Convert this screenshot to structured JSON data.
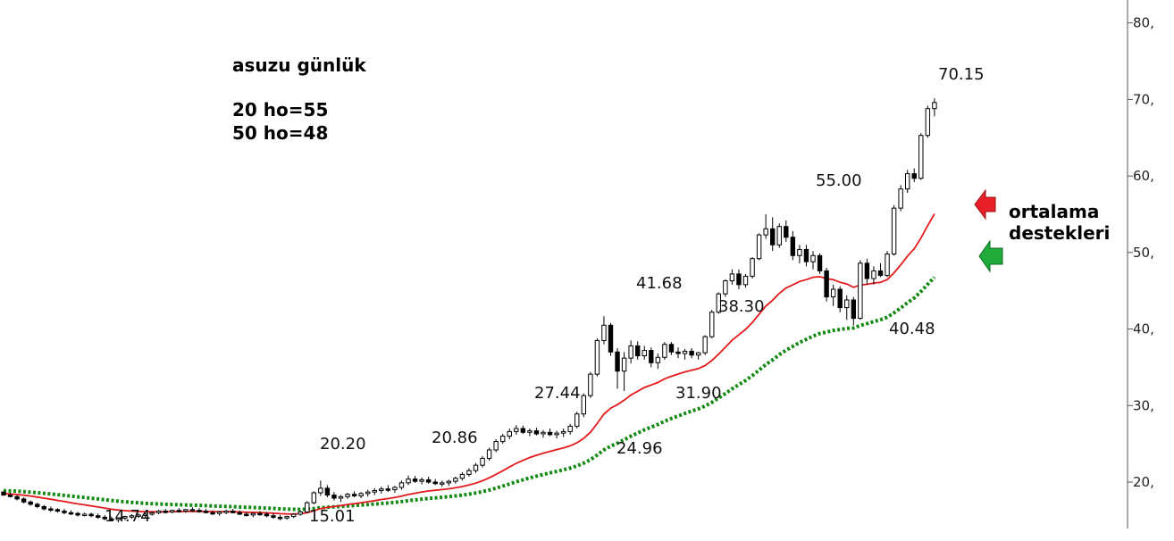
{
  "chart_data": {
    "type": "candlestick",
    "title": "",
    "info_lines": [
      "asuzu günlük",
      "20 ho=55",
      "50 ho=48"
    ],
    "y_axis": {
      "side": "right",
      "ylim": [
        12.3,
        83
      ],
      "ticks": [
        20,
        30,
        40,
        50,
        60,
        70,
        80
      ],
      "tick_labels": [
        "20,",
        "30,",
        "40,",
        "50,",
        "60,",
        "70,",
        "80,"
      ]
    },
    "grid": false,
    "series": [
      {
        "name": "20 ho",
        "style": "solid",
        "color": "#e31a1c",
        "last_value": 55
      },
      {
        "name": "50 ho",
        "style": "dotted",
        "color": "#138a13",
        "last_value": 48
      }
    ],
    "candles_ohlc": [
      [
        18.7,
        18.8,
        18.2,
        18.3
      ],
      [
        18.3,
        18.6,
        18.0,
        18.1
      ],
      [
        18.1,
        18.3,
        17.6,
        17.8
      ],
      [
        17.8,
        18.0,
        17.2,
        17.4
      ],
      [
        17.4,
        17.6,
        16.9,
        17.1
      ],
      [
        17.1,
        17.3,
        16.6,
        16.8
      ],
      [
        16.8,
        17.0,
        16.3,
        16.5
      ],
      [
        16.5,
        16.8,
        16.1,
        16.4
      ],
      [
        16.4,
        16.6,
        16.0,
        16.2
      ],
      [
        16.2,
        16.5,
        15.8,
        16.0
      ],
      [
        16.0,
        16.3,
        15.7,
        15.9
      ],
      [
        15.9,
        16.1,
        15.5,
        15.7
      ],
      [
        15.7,
        16.0,
        15.5,
        15.8
      ],
      [
        15.8,
        16.0,
        15.4,
        15.6
      ],
      [
        15.6,
        15.9,
        15.2,
        15.4
      ],
      [
        15.4,
        15.7,
        15.0,
        15.2
      ],
      [
        15.2,
        15.5,
        14.9,
        15.1
      ],
      [
        15.1,
        15.4,
        14.74,
        15.3
      ],
      [
        15.3,
        15.6,
        15.0,
        15.5
      ],
      [
        15.5,
        15.8,
        15.2,
        15.6
      ],
      [
        15.6,
        15.9,
        15.3,
        15.7
      ],
      [
        15.7,
        16.0,
        15.4,
        15.8
      ],
      [
        15.8,
        16.2,
        15.6,
        16.0
      ],
      [
        16.0,
        16.4,
        15.8,
        16.2
      ],
      [
        16.2,
        16.5,
        15.9,
        16.1
      ],
      [
        16.1,
        16.4,
        15.9,
        16.3
      ],
      [
        16.3,
        16.6,
        16.0,
        16.2
      ],
      [
        16.2,
        16.5,
        16.0,
        16.4
      ],
      [
        16.4,
        16.7,
        16.1,
        16.3
      ],
      [
        16.3,
        16.6,
        16.0,
        16.2
      ],
      [
        16.2,
        16.5,
        15.9,
        16.0
      ],
      [
        16.0,
        16.3,
        15.7,
        15.9
      ],
      [
        15.9,
        16.2,
        15.6,
        16.1
      ],
      [
        16.1,
        16.4,
        15.8,
        16.2
      ],
      [
        16.2,
        16.5,
        15.9,
        16.0
      ],
      [
        16.0,
        16.3,
        15.7,
        15.8
      ],
      [
        15.8,
        16.1,
        15.5,
        15.7
      ],
      [
        15.7,
        16.0,
        15.4,
        15.9
      ],
      [
        15.9,
        16.2,
        15.6,
        15.8
      ],
      [
        15.8,
        16.1,
        15.4,
        15.6
      ],
      [
        15.6,
        15.9,
        15.2,
        15.4
      ],
      [
        15.4,
        15.7,
        15.01,
        15.3
      ],
      [
        15.3,
        15.6,
        15.1,
        15.5
      ],
      [
        15.5,
        15.9,
        15.3,
        15.8
      ],
      [
        15.8,
        16.3,
        15.6,
        16.1
      ],
      [
        16.1,
        17.5,
        16.0,
        17.3
      ],
      [
        17.3,
        18.8,
        17.1,
        18.6
      ],
      [
        18.6,
        20.2,
        18.2,
        19.2
      ],
      [
        19.2,
        19.6,
        18.0,
        18.3
      ],
      [
        18.3,
        18.7,
        17.6,
        17.9
      ],
      [
        17.9,
        18.3,
        17.4,
        18.1
      ],
      [
        18.1,
        18.6,
        17.8,
        18.4
      ],
      [
        18.4,
        18.8,
        18.0,
        18.2
      ],
      [
        18.2,
        18.7,
        17.9,
        18.5
      ],
      [
        18.5,
        19.0,
        18.1,
        18.7
      ],
      [
        18.7,
        19.2,
        18.3,
        18.9
      ],
      [
        18.9,
        19.4,
        18.5,
        19.1
      ],
      [
        19.1,
        19.6,
        18.7,
        19.0
      ],
      [
        19.0,
        19.5,
        18.6,
        19.3
      ],
      [
        19.3,
        20.2,
        19.0,
        19.9
      ],
      [
        19.9,
        20.86,
        19.6,
        20.4
      ],
      [
        20.4,
        20.8,
        19.9,
        20.1
      ],
      [
        20.1,
        20.6,
        19.7,
        20.3
      ],
      [
        20.3,
        20.7,
        19.8,
        20.0
      ],
      [
        20.0,
        20.4,
        19.6,
        19.8
      ],
      [
        19.8,
        20.2,
        19.4,
        19.9
      ],
      [
        19.9,
        20.3,
        19.5,
        20.1
      ],
      [
        20.1,
        20.7,
        19.8,
        20.5
      ],
      [
        20.5,
        21.3,
        20.2,
        21.0
      ],
      [
        21.0,
        21.8,
        20.7,
        21.5
      ],
      [
        21.5,
        22.5,
        21.2,
        22.2
      ],
      [
        22.2,
        23.4,
        21.9,
        23.1
      ],
      [
        23.1,
        24.5,
        22.8,
        24.2
      ],
      [
        24.2,
        25.6,
        23.9,
        25.3
      ],
      [
        25.3,
        26.3,
        25.0,
        26.0
      ],
      [
        26.0,
        27.0,
        25.6,
        26.6
      ],
      [
        26.6,
        27.44,
        26.2,
        27.0
      ],
      [
        27.0,
        27.4,
        26.3,
        26.5
      ],
      [
        26.5,
        27.0,
        26.0,
        26.7
      ],
      [
        26.7,
        27.1,
        26.1,
        26.3
      ],
      [
        26.3,
        26.8,
        25.8,
        26.5
      ],
      [
        26.5,
        27.0,
        26.0,
        26.2
      ],
      [
        26.2,
        26.7,
        25.7,
        26.4
      ],
      [
        26.4,
        27.0,
        25.9,
        26.6
      ],
      [
        26.6,
        27.6,
        26.2,
        27.3
      ],
      [
        27.3,
        29.2,
        27.0,
        28.9
      ],
      [
        28.9,
        31.6,
        28.5,
        31.3
      ],
      [
        31.3,
        34.4,
        31.0,
        34.1
      ],
      [
        34.1,
        38.8,
        33.8,
        38.5
      ],
      [
        38.5,
        41.68,
        38.0,
        40.5
      ],
      [
        40.5,
        40.8,
        36.5,
        37.0
      ],
      [
        37.0,
        37.5,
        32.2,
        34.5
      ],
      [
        34.5,
        37.0,
        31.9,
        36.2
      ],
      [
        36.2,
        38.5,
        35.5,
        37.8
      ],
      [
        37.8,
        38.4,
        36.0,
        36.5
      ],
      [
        36.5,
        37.8,
        36.0,
        37.2
      ],
      [
        37.2,
        37.6,
        35.0,
        35.6
      ],
      [
        35.6,
        36.8,
        34.8,
        36.3
      ],
      [
        36.3,
        38.3,
        36.0,
        38.0
      ],
      [
        38.0,
        38.3,
        36.6,
        37.0
      ],
      [
        37.0,
        37.6,
        36.2,
        36.8
      ],
      [
        36.8,
        37.4,
        36.0,
        37.1
      ],
      [
        37.1,
        37.5,
        36.2,
        36.6
      ],
      [
        36.6,
        37.0,
        36.0,
        36.9
      ],
      [
        36.9,
        39.2,
        36.6,
        39.0
      ],
      [
        39.0,
        42.5,
        38.8,
        42.2
      ],
      [
        42.2,
        44.8,
        42.0,
        44.6
      ],
      [
        44.6,
        46.5,
        44.2,
        46.3
      ],
      [
        46.3,
        47.8,
        45.8,
        47.2
      ],
      [
        47.2,
        47.8,
        45.2,
        45.8
      ],
      [
        45.8,
        47.2,
        45.4,
        46.9
      ],
      [
        46.9,
        49.4,
        46.6,
        49.2
      ],
      [
        49.2,
        52.5,
        49.0,
        52.3
      ],
      [
        52.3,
        55.0,
        51.8,
        53.1
      ],
      [
        53.1,
        54.6,
        50.2,
        51.0
      ],
      [
        51.0,
        53.8,
        50.6,
        53.4
      ],
      [
        53.4,
        54.2,
        51.4,
        52.0
      ],
      [
        52.0,
        52.8,
        49.0,
        49.6
      ],
      [
        49.6,
        51.0,
        48.6,
        50.4
      ],
      [
        50.4,
        51.0,
        48.2,
        48.8
      ],
      [
        48.8,
        50.2,
        47.8,
        49.6
      ],
      [
        49.6,
        49.9,
        47.2,
        47.6
      ],
      [
        47.6,
        48.0,
        43.6,
        44.2
      ],
      [
        44.2,
        45.8,
        43.0,
        45.2
      ],
      [
        45.2,
        45.6,
        42.2,
        42.8
      ],
      [
        42.8,
        44.4,
        41.2,
        43.8
      ],
      [
        43.8,
        44.2,
        40.48,
        41.4
      ],
      [
        41.4,
        49.0,
        41.2,
        48.6
      ],
      [
        48.6,
        49.2,
        45.8,
        46.6
      ],
      [
        46.6,
        48.2,
        45.8,
        47.6
      ],
      [
        47.6,
        48.6,
        46.8,
        47.0
      ],
      [
        47.0,
        50.2,
        46.8,
        49.8
      ],
      [
        49.8,
        56.2,
        49.6,
        55.8
      ],
      [
        55.8,
        58.8,
        55.4,
        58.3
      ],
      [
        58.3,
        60.8,
        57.8,
        60.3
      ],
      [
        60.3,
        61.0,
        59.2,
        59.7
      ],
      [
        59.7,
        65.6,
        59.5,
        65.3
      ],
      [
        65.3,
        69.2,
        65.0,
        68.8
      ],
      [
        68.8,
        70.15,
        67.8,
        69.6
      ]
    ],
    "annotations": [
      {
        "text": "70.15",
        "value": 70.15
      },
      {
        "text": "55.00",
        "value": 55.0
      },
      {
        "text": "41.68",
        "value": 41.68
      },
      {
        "text": "38.30",
        "value": 38.3
      },
      {
        "text": "27.44",
        "value": 27.44
      },
      {
        "text": "31.90",
        "value": 31.9
      },
      {
        "text": "24.96",
        "value": 24.96
      },
      {
        "text": "40.48",
        "value": 40.48
      },
      {
        "text": "20.20",
        "value": 20.2
      },
      {
        "text": "20.86",
        "value": 20.86
      },
      {
        "text": "14.74",
        "value": 14.74
      },
      {
        "text": "15.01",
        "value": 15.01
      }
    ],
    "note_lines": [
      "ortalama",
      "destekleri"
    ],
    "arrow_colors": {
      "ma20": "#e8202a",
      "ma50": "#1faa3a"
    },
    "candle_colors": {
      "body_up": "#ffffff",
      "body_down": "#000000",
      "outline": "#000000"
    }
  }
}
